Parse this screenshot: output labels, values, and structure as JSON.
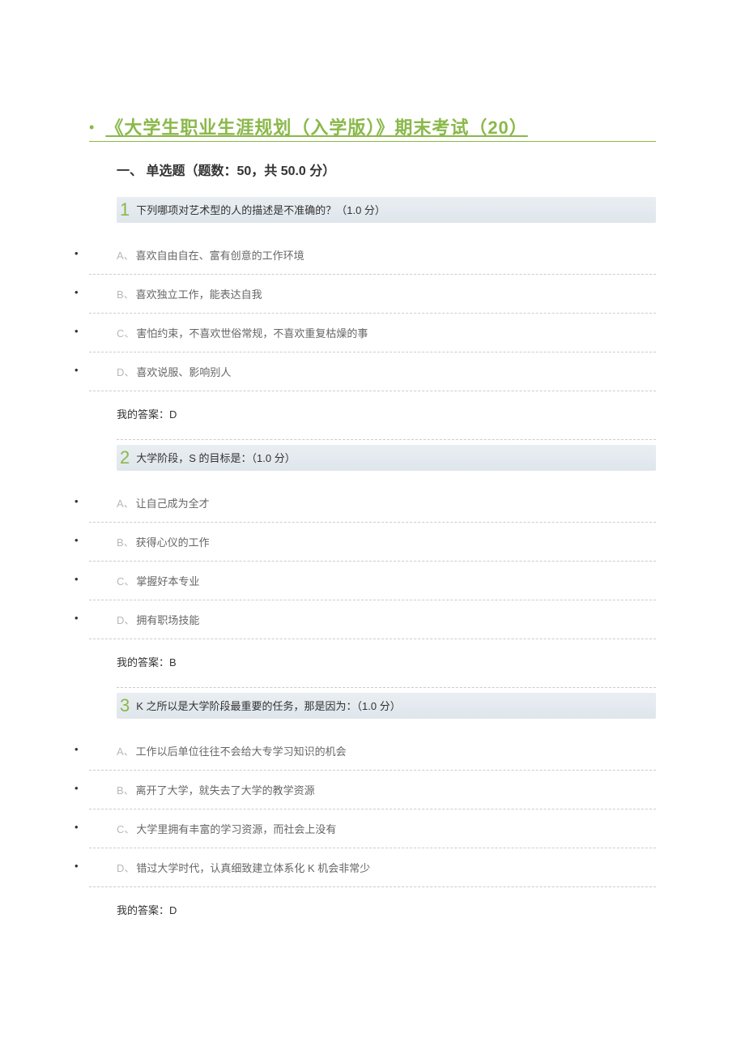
{
  "colors": {
    "accent": "#8ab84a",
    "border_underline": "#8ab84a",
    "question_bg_top": "#e9eef2",
    "question_bg_bottom": "#dfe6ec",
    "option_letter": "#b8b8b8",
    "option_text": "#666666",
    "divider": "#cccccc",
    "body_text": "#333333",
    "background": "#ffffff"
  },
  "typography": {
    "title_fontsize": 22,
    "title_weight": 700,
    "section_fontsize": 16,
    "section_weight": 700,
    "question_number_fontsize": 22,
    "body_fontsize": 13,
    "font_family": "Microsoft YaHei"
  },
  "title": "《大学生职业生涯规划（入学版）》期末考试（20）",
  "section_heading": "一、 单选题（题数：50，共 50.0 分）",
  "answer_prefix": "我的答案：",
  "questions": [
    {
      "number": "1",
      "text": "下列哪项对艺术型的人的描述是不准确的？（1.0 分）",
      "options": [
        {
          "letter": "A、",
          "text": "喜欢自由自在、富有创意的工作环境"
        },
        {
          "letter": "B、",
          "text": "喜欢独立工作，能表达自我"
        },
        {
          "letter": "C、",
          "text": "害怕约束，不喜欢世俗常规，不喜欢重复枯燥的事"
        },
        {
          "letter": "D、",
          "text": "喜欢说服、影响别人"
        }
      ],
      "answer": "D"
    },
    {
      "number": "2",
      "text": "大学阶段，S 的目标是：（1.0 分）",
      "options": [
        {
          "letter": "A、",
          "text": "让自己成为全才"
        },
        {
          "letter": "B、",
          "text": "获得心仪的工作"
        },
        {
          "letter": "C、",
          "text": "掌握好本专业"
        },
        {
          "letter": "D、",
          "text": "拥有职场技能"
        }
      ],
      "answer": "B"
    },
    {
      "number": "3",
      "text": "K 之所以是大学阶段最重要的任务，那是因为：（1.0 分）",
      "options": [
        {
          "letter": "A、",
          "text": "工作以后单位往往不会给大专学习知识的机会"
        },
        {
          "letter": "B、",
          "text": "离开了大学，就失去了大学的教学资源"
        },
        {
          "letter": "C、",
          "text": "大学里拥有丰富的学习资源，而社会上没有"
        },
        {
          "letter": "D、",
          "text": "错过大学时代，认真细致建立体系化 K 机会非常少"
        }
      ],
      "answer": "D"
    }
  ]
}
